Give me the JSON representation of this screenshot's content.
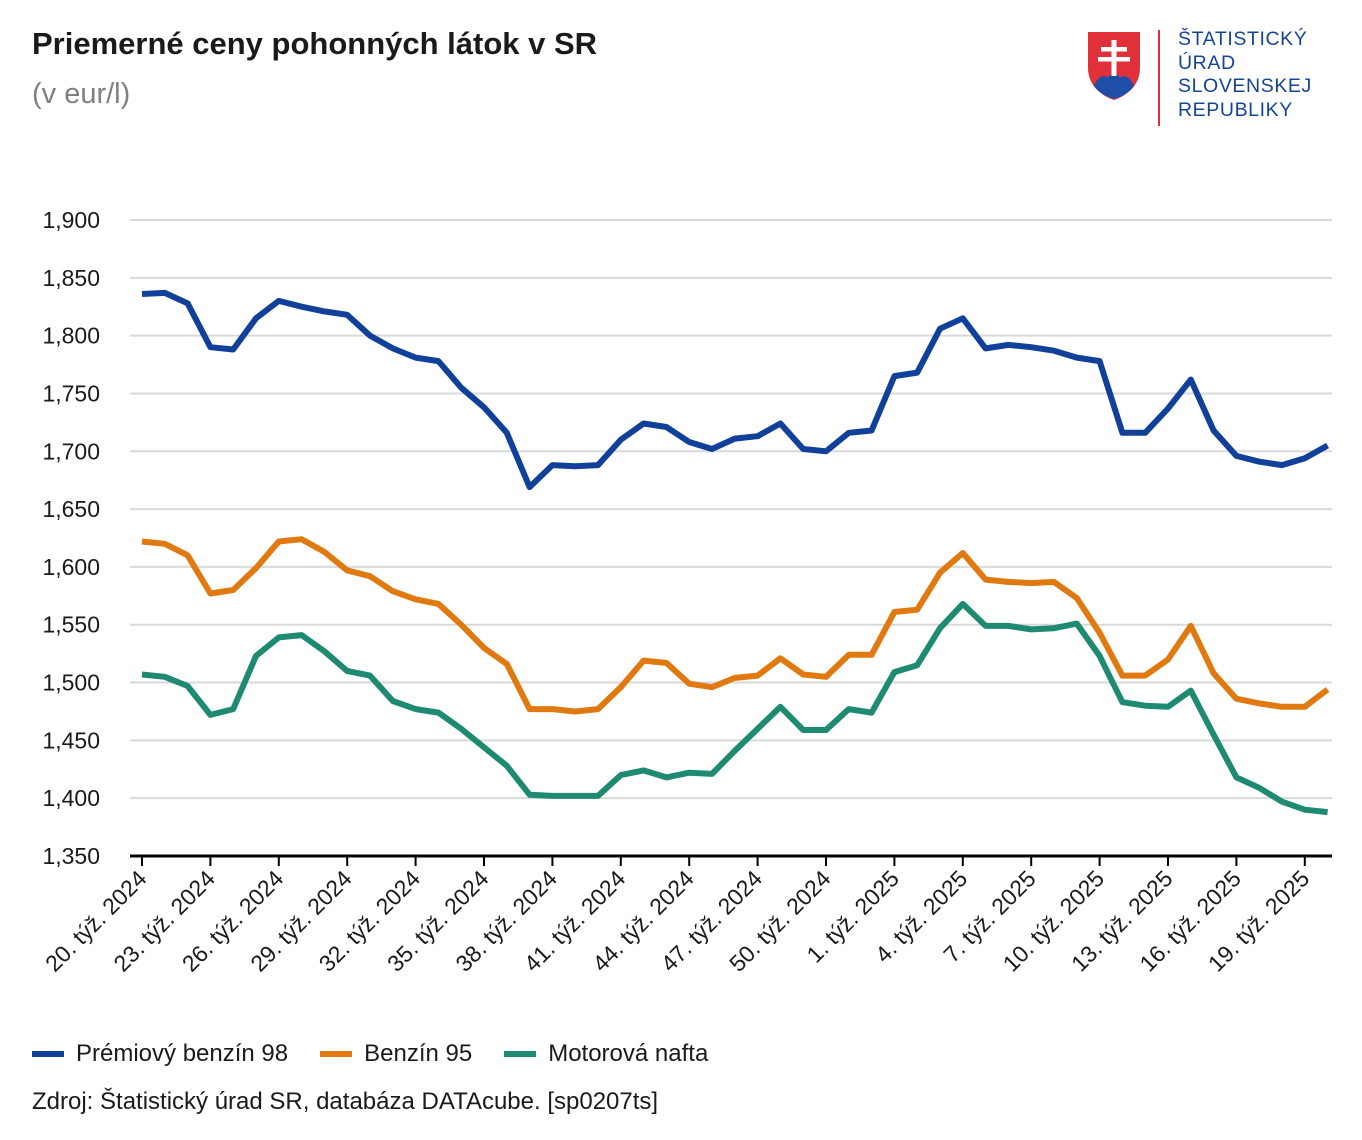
{
  "header": {
    "title": "Priemerné ceny pohonných látok v SR",
    "subtitle": "(v eur/l)"
  },
  "logo": {
    "lines": [
      "ŠTATISTICKÝ",
      "ÚRAD",
      "SLOVENSKEJ",
      "REPUBLIKY"
    ]
  },
  "colors": {
    "premium": "#11409a",
    "benzin95": "#e07a10",
    "nafta": "#1f8a72",
    "grid": "#d9d9d9",
    "axis": "#000000"
  },
  "chart_data": {
    "type": "line",
    "title": "Priemerné ceny pohonných látok v SR",
    "ylabel": "",
    "xlabel": "",
    "ylim": [
      1.35,
      1.9
    ],
    "yticks": [
      "1,350",
      "1,400",
      "1,450",
      "1,500",
      "1,550",
      "1,600",
      "1,650",
      "1,700",
      "1,750",
      "1,800",
      "1,850",
      "1,900"
    ],
    "xtick_labels": [
      "20. týž. 2024",
      "23. týž. 2024",
      "26. týž. 2024",
      "29. týž. 2024",
      "32. týž. 2024",
      "35. týž. 2024",
      "38. týž. 2024",
      "41. týž. 2024",
      "44. týž. 2024",
      "47. týž. 2024",
      "50. týž. 2024",
      "1. týž. 2025",
      "4. týž. 2025",
      "7. týž. 2025",
      "10. týž. 2025",
      "13. týž. 2025",
      "16. týž. 2025",
      "19. týž. 2025"
    ],
    "grid": true,
    "legend_position": "bottom",
    "series": [
      {
        "name": "Prémiový benzín 98",
        "color": "#11409a",
        "values": [
          1.836,
          1.837,
          1.828,
          1.79,
          1.788,
          1.815,
          1.83,
          1.825,
          1.821,
          1.818,
          1.8,
          1.789,
          1.781,
          1.778,
          1.755,
          1.738,
          1.716,
          1.669,
          1.688,
          1.687,
          1.688,
          1.71,
          1.724,
          1.721,
          1.708,
          1.702,
          1.711,
          1.713,
          1.724,
          1.702,
          1.7,
          1.716,
          1.718,
          1.765,
          1.768,
          1.806,
          1.815,
          1.789,
          1.792,
          1.79,
          1.787,
          1.781,
          1.778,
          1.716,
          1.716,
          1.737,
          1.762,
          1.718,
          1.696,
          1.691,
          1.688,
          1.694,
          1.705
        ]
      },
      {
        "name": "Benzín 95",
        "color": "#e07a10",
        "values": [
          1.622,
          1.62,
          1.61,
          1.577,
          1.58,
          1.599,
          1.622,
          1.624,
          1.613,
          1.597,
          1.592,
          1.579,
          1.572,
          1.568,
          1.55,
          1.53,
          1.516,
          1.477,
          1.477,
          1.475,
          1.477,
          1.496,
          1.519,
          1.517,
          1.499,
          1.496,
          1.504,
          1.506,
          1.521,
          1.507,
          1.505,
          1.524,
          1.524,
          1.561,
          1.563,
          1.595,
          1.612,
          1.589,
          1.587,
          1.586,
          1.587,
          1.573,
          1.543,
          1.506,
          1.506,
          1.52,
          1.549,
          1.508,
          1.486,
          1.482,
          1.479,
          1.479,
          1.494
        ]
      },
      {
        "name": "Motorová nafta",
        "color": "#1f8a72",
        "values": [
          1.507,
          1.505,
          1.497,
          1.472,
          1.477,
          1.523,
          1.539,
          1.541,
          1.527,
          1.51,
          1.506,
          1.484,
          1.477,
          1.474,
          1.46,
          1.444,
          1.428,
          1.403,
          1.402,
          1.402,
          1.402,
          1.42,
          1.424,
          1.418,
          1.422,
          1.421,
          1.441,
          1.46,
          1.479,
          1.459,
          1.459,
          1.477,
          1.474,
          1.509,
          1.515,
          1.547,
          1.568,
          1.549,
          1.549,
          1.546,
          1.547,
          1.551,
          1.523,
          1.483,
          1.48,
          1.479,
          1.493,
          1.455,
          1.418,
          1.409,
          1.397,
          1.39,
          1.388
        ]
      }
    ]
  },
  "source": "Zdroj: Štatistický úrad SR, databáza DATAcube. [sp0207ts]"
}
